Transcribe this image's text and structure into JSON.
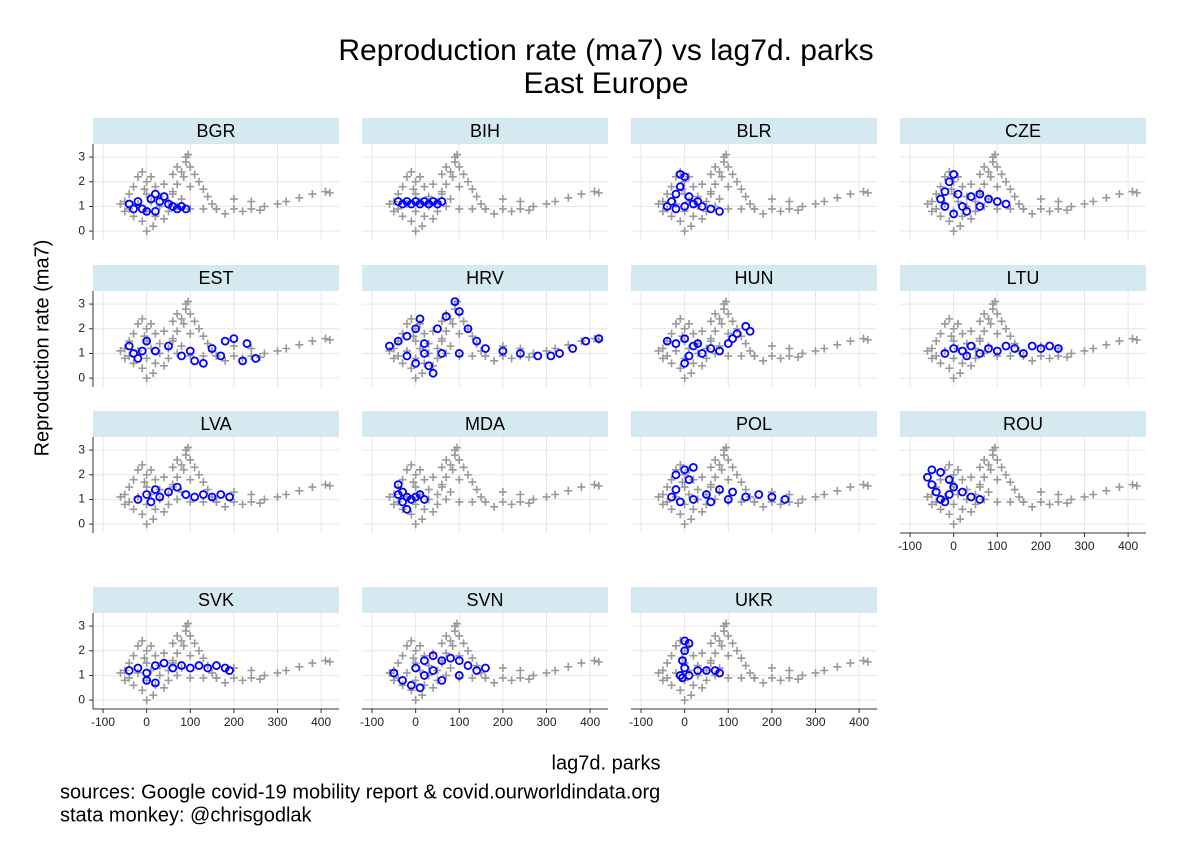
{
  "chart_data": {
    "type": "scatter",
    "title": "Reproduction rate (ma7) vs lag7d. parks",
    "subtitle": "East Europe",
    "x_label": "lag7d. parks",
    "y_label": "Reproduction rate (ma7)",
    "notes": [
      "sources: Google covid-19 mobility report & covid.ourworldindata.org",
      "stata monkey: @chrisgodlak"
    ],
    "xlim": [
      -123,
      441
    ],
    "ylim": [
      -0.36,
      3.53
    ],
    "xticks": [
      -100,
      0,
      100,
      200,
      300,
      400
    ],
    "yticks": [
      0,
      1,
      2,
      3
    ],
    "grid": true,
    "background": {
      "color": "#999999",
      "marker": "plus",
      "x": [
        -50,
        -40,
        -40,
        -30,
        -30,
        -20,
        -20,
        -10,
        -10,
        0,
        0,
        0,
        0,
        10,
        10,
        20,
        20,
        30,
        30,
        40,
        40,
        50,
        50,
        60,
        70,
        80,
        -60,
        -50,
        15,
        -5,
        60,
        70,
        80,
        90,
        95,
        100,
        110,
        120,
        130,
        140,
        150,
        160,
        90,
        85,
        100,
        60,
        70,
        100,
        130,
        160,
        200,
        240,
        270,
        300,
        320,
        350,
        380,
        410,
        420,
        200,
        240,
        180,
        220,
        260
      ],
      "values": [
        1.2,
        0.9,
        1.5,
        1.8,
        0.6,
        2.2,
        1.1,
        2.4,
        0.4,
        2.0,
        1.5,
        0.8,
        0.0,
        1.2,
        2.2,
        0.6,
        1.8,
        1.4,
        1.0,
        0.5,
        1.9,
        1.2,
        0.8,
        1.6,
        1.0,
        1.3,
        1.1,
        0.8,
        0.2,
        1.7,
        1.5,
        1.9,
        2.4,
        2.8,
        3.1,
        2.6,
        2.3,
        2.0,
        1.7,
        1.4,
        1.1,
        0.9,
        3.0,
        2.2,
        1.8,
        2.3,
        2.6,
        0.9,
        0.9,
        0.9,
        0.9,
        0.9,
        1.0,
        1.1,
        1.2,
        1.35,
        1.5,
        1.6,
        1.55,
        1.3,
        1.2,
        0.7,
        0.8,
        0.85
      ]
    },
    "panels": [
      {
        "label": "BGR",
        "color": "#0000ff",
        "x": [
          -40,
          -20,
          -10,
          0,
          10,
          20,
          30,
          40,
          50,
          60,
          70,
          80,
          90,
          20,
          -30
        ],
        "values": [
          1.1,
          1.2,
          0.9,
          0.8,
          1.3,
          1.5,
          1.2,
          1.4,
          1.1,
          1.0,
          0.9,
          1.0,
          0.9,
          0.8,
          0.9
        ]
      },
      {
        "label": "BIH",
        "color": "#0000ff",
        "x": [
          -40,
          -30,
          -20,
          -10,
          0,
          10,
          20,
          30,
          40,
          50,
          60
        ],
        "values": [
          1.2,
          1.1,
          1.2,
          1.1,
          1.2,
          1.1,
          1.2,
          1.1,
          1.2,
          1.1,
          1.2
        ]
      },
      {
        "label": "BLR",
        "color": "#0000ff",
        "x": [
          -10,
          0,
          -10,
          -20,
          -30,
          -40,
          -20,
          0,
          20,
          40,
          60,
          80,
          10,
          30
        ],
        "values": [
          2.3,
          2.2,
          1.8,
          1.5,
          1.2,
          1.0,
          0.9,
          1.0,
          1.1,
          1.0,
          0.9,
          0.8,
          1.4,
          1.2
        ]
      },
      {
        "label": "CZE",
        "color": "#0000ff",
        "x": [
          0,
          -10,
          -20,
          -30,
          -20,
          0,
          20,
          40,
          60,
          80,
          100,
          120,
          60,
          30,
          10
        ],
        "values": [
          2.3,
          2.0,
          1.6,
          1.3,
          1.0,
          0.7,
          1.0,
          1.4,
          1.5,
          1.3,
          1.2,
          1.1,
          1.0,
          0.8,
          1.5
        ]
      },
      {
        "label": "EST",
        "color": "#0000ff",
        "x": [
          -40,
          -30,
          -20,
          0,
          20,
          50,
          80,
          110,
          130,
          150,
          180,
          200,
          230,
          250,
          220,
          170,
          100,
          -10
        ],
        "values": [
          1.3,
          1.0,
          0.8,
          1.5,
          1.1,
          1.3,
          0.9,
          0.7,
          0.6,
          1.2,
          1.5,
          1.6,
          1.4,
          0.8,
          0.7,
          0.9,
          1.1,
          1.1
        ]
      },
      {
        "label": "HRV",
        "color": "#0000ff",
        "x": [
          -60,
          -40,
          -20,
          0,
          10,
          20,
          30,
          40,
          20,
          50,
          70,
          90,
          100,
          120,
          140,
          160,
          200,
          240,
          280,
          310,
          330,
          360,
          390,
          420,
          60,
          100,
          -20,
          0
        ],
        "values": [
          1.3,
          1.5,
          1.7,
          2.0,
          2.4,
          1.0,
          0.5,
          0.2,
          1.4,
          2.0,
          2.5,
          3.1,
          2.7,
          2.0,
          1.5,
          1.2,
          1.1,
          1.0,
          0.9,
          0.9,
          1.0,
          1.2,
          1.5,
          1.6,
          1.0,
          1.0,
          0.9,
          0.6
        ]
      },
      {
        "label": "HUN",
        "color": "#0000ff",
        "x": [
          -40,
          -20,
          0,
          20,
          10,
          0,
          40,
          60,
          80,
          100,
          120,
          140,
          150,
          110,
          30
        ],
        "values": [
          1.5,
          1.4,
          1.6,
          1.3,
          0.9,
          0.6,
          1.0,
          1.2,
          1.1,
          1.4,
          1.8,
          2.1,
          1.9,
          1.6,
          1.4
        ]
      },
      {
        "label": "LTU",
        "color": "#0000ff",
        "x": [
          -20,
          0,
          20,
          40,
          60,
          80,
          100,
          120,
          140,
          160,
          180,
          200,
          220,
          240,
          30
        ],
        "values": [
          1.0,
          1.2,
          1.1,
          1.3,
          1.0,
          1.2,
          1.1,
          1.3,
          1.2,
          1.0,
          1.3,
          1.2,
          1.3,
          1.2,
          0.9
        ]
      },
      {
        "label": "LVA",
        "color": "#0000ff",
        "x": [
          -20,
          0,
          10,
          30,
          50,
          70,
          90,
          110,
          130,
          150,
          170,
          190,
          20
        ],
        "values": [
          1.0,
          1.2,
          0.9,
          1.1,
          1.3,
          1.5,
          1.2,
          1.1,
          1.2,
          1.1,
          1.2,
          1.1,
          1.4
        ]
      },
      {
        "label": "MDA",
        "color": "#0000ff",
        "x": [
          -40,
          -30,
          -20,
          -30,
          -20,
          -10,
          0,
          10,
          20,
          -40
        ],
        "values": [
          1.6,
          1.3,
          1.1,
          0.9,
          0.6,
          1.0,
          1.1,
          1.2,
          1.0,
          1.2
        ]
      },
      {
        "label": "POL",
        "color": "#0000ff",
        "x": [
          -20,
          0,
          20,
          10,
          -20,
          -30,
          -10,
          20,
          50,
          80,
          110,
          140,
          170,
          200,
          230,
          60,
          100
        ],
        "values": [
          2.0,
          2.2,
          2.3,
          1.8,
          1.4,
          1.1,
          0.9,
          1.0,
          1.2,
          1.4,
          1.3,
          1.1,
          1.2,
          1.1,
          1.0,
          0.9,
          1.0
        ]
      },
      {
        "label": "ROU",
        "color": "#0000ff",
        "x": [
          -50,
          -60,
          -50,
          -40,
          -30,
          -20,
          -10,
          0,
          20,
          40,
          60,
          -30,
          -10
        ],
        "values": [
          2.2,
          1.9,
          1.6,
          1.3,
          1.0,
          0.9,
          1.2,
          1.5,
          1.3,
          1.1,
          1.0,
          2.1,
          1.8
        ]
      },
      {
        "label": "SVK",
        "color": "#0000ff",
        "x": [
          -40,
          -20,
          0,
          20,
          40,
          60,
          80,
          100,
          120,
          140,
          160,
          180,
          0,
          20,
          190
        ],
        "values": [
          1.2,
          1.3,
          1.1,
          1.4,
          1.5,
          1.3,
          1.4,
          1.3,
          1.4,
          1.3,
          1.4,
          1.3,
          0.8,
          0.7,
          1.2
        ]
      },
      {
        "label": "SVN",
        "color": "#0000ff",
        "x": [
          -50,
          -30,
          -10,
          10,
          20,
          0,
          20,
          40,
          60,
          80,
          100,
          120,
          140,
          160,
          100,
          60,
          40
        ],
        "values": [
          1.1,
          0.8,
          0.6,
          0.5,
          1.0,
          1.3,
          1.6,
          1.8,
          1.6,
          1.7,
          1.6,
          1.4,
          1.2,
          1.3,
          1.0,
          0.8,
          1.2
        ]
      },
      {
        "label": "UKR",
        "color": "#0000ff",
        "x": [
          0,
          10,
          0,
          -5,
          0,
          -10,
          -5,
          10,
          30,
          50,
          70,
          80
        ],
        "values": [
          2.4,
          2.3,
          2.0,
          1.6,
          1.3,
          1.0,
          0.9,
          1.0,
          1.2,
          1.2,
          1.2,
          1.1
        ]
      }
    ]
  }
}
